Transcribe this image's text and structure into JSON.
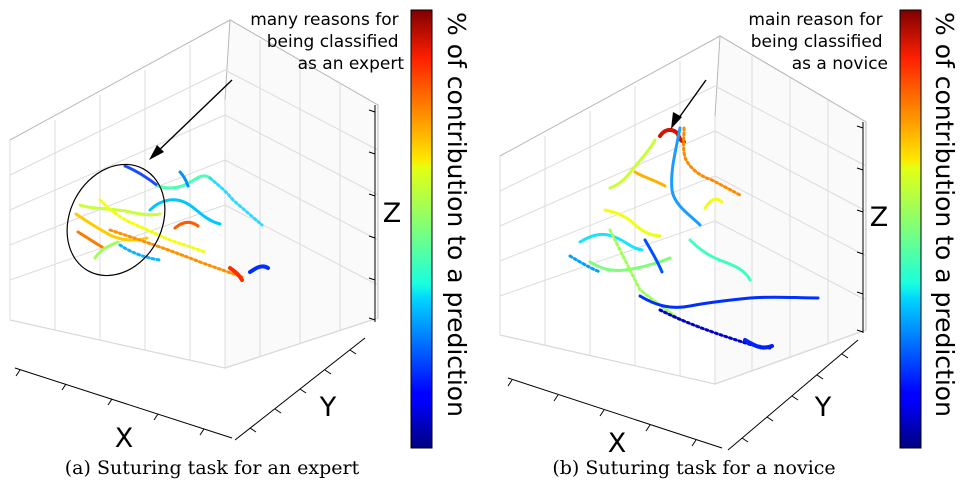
{
  "chart_data": [
    {
      "type": "3d-trajectory",
      "caption": "(a) Suturing task for an expert",
      "xlabel": "X",
      "ylabel": "Y",
      "zlabel": "Z",
      "colorbar_label": "% of contribution to a prediction",
      "colormap": "jet",
      "annotation": "many reasons for being classified as an expert",
      "annotation_lines": [
        "many reasons for",
        "being classified",
        "as an expert"
      ],
      "grid": true
    },
    {
      "type": "3d-trajectory",
      "caption": "(b) Suturing task for a novice",
      "xlabel": "X",
      "ylabel": "Y",
      "zlabel": "Z",
      "colorbar_label": "% of contribution to a prediction",
      "colormap": "jet",
      "annotation": "main reason for being classified as a novice",
      "annotation_lines": [
        "main reason for",
        "being classified",
        "as a novice"
      ],
      "grid": true
    }
  ]
}
